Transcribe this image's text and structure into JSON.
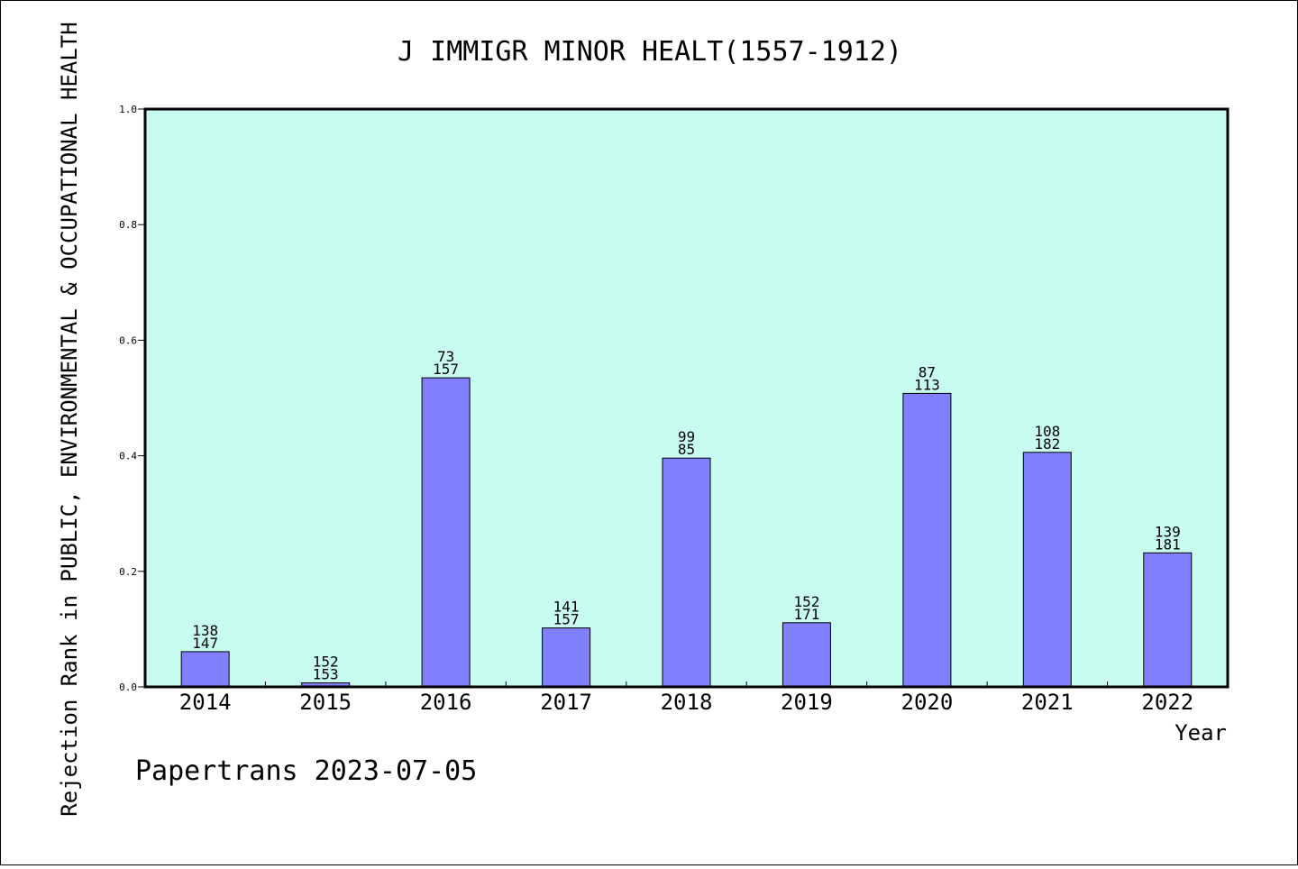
{
  "chart_data": {
    "type": "bar",
    "title": "J IMMIGR MINOR HEALT(1557-1912)",
    "xlabel": "Year",
    "ylabel": "Rejection Rank in PUBLIC, ENVIRONMENTAL & OCCUPATIONAL HEALTH",
    "ylim": [
      0,
      1.0
    ],
    "yticks": [
      "0.0",
      "0.2",
      "0.4",
      "0.6",
      "0.8",
      "1.0"
    ],
    "categories": [
      "2014",
      "2015",
      "2016",
      "2017",
      "2018",
      "2019",
      "2020",
      "2021",
      "2022"
    ],
    "values": [
      0.061,
      0.007,
      0.535,
      0.102,
      0.396,
      0.111,
      0.508,
      0.406,
      0.232
    ],
    "label_top": [
      "138",
      "152",
      "73",
      "141",
      "99",
      "152",
      "87",
      "108",
      "139"
    ],
    "label_bottom": [
      "147",
      "153",
      "157",
      "157",
      "85",
      "171",
      "113",
      "182",
      "181"
    ],
    "colors": {
      "plot_bg": "#c8fcf0",
      "bar": "#8080ff",
      "bar_edge": "#000000"
    },
    "grid": false,
    "legend": "none"
  },
  "footer": {
    "credit": "Papertrans 2023-07-05"
  }
}
